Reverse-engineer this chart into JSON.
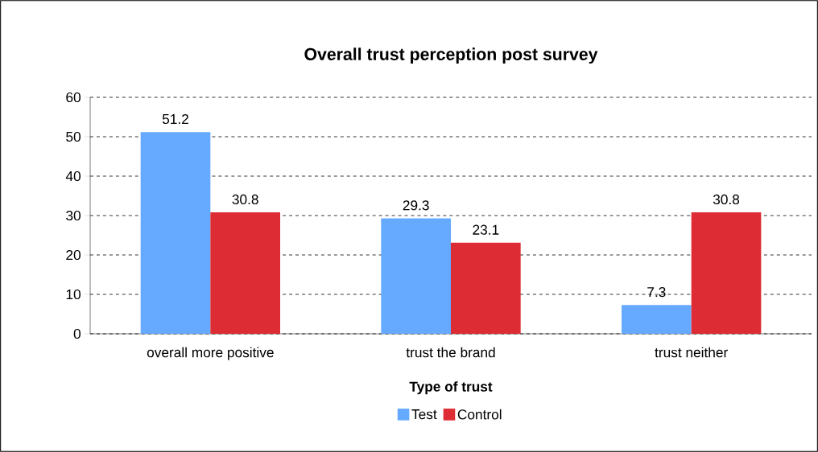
{
  "chart_data": {
    "type": "bar",
    "title": "Overall trust perception post survey",
    "xlabel": "Type of  trust",
    "categories": [
      "overall more positive",
      "trust the brand",
      "trust neither"
    ],
    "series": [
      {
        "name": "Test",
        "color": "#66aaff",
        "values": [
          51.2,
          29.3,
          7.3
        ]
      },
      {
        "name": "Control",
        "color": "#dd2c33",
        "values": [
          30.8,
          23.1,
          30.8
        ]
      }
    ],
    "ylim": [
      0,
      60
    ],
    "yticks": [
      0,
      10,
      20,
      30,
      40,
      50,
      60
    ],
    "grid": "y",
    "legend": "bottom",
    "data_labels": true
  }
}
